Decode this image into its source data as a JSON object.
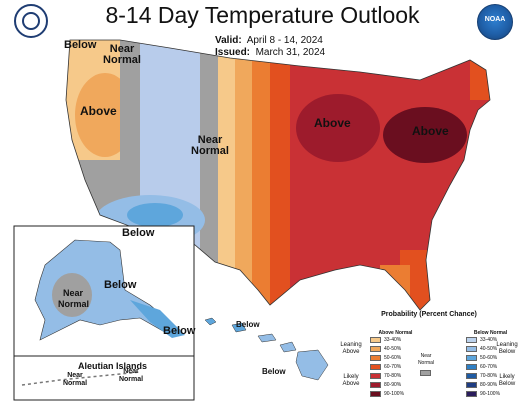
{
  "title": "8-14 Day Temperature Outlook",
  "valid_label": "Valid:",
  "valid_value": "April 8 - 14, 2024",
  "issued_label": "Issued:",
  "issued_value": "March 31, 2024",
  "logo_right_text": "NOAA",
  "labels": {
    "below_nw": "Below",
    "near_normal_nw": "Near Normal",
    "above_west": "Above",
    "near_normal_center": "Near Normal",
    "below_sw": "Below",
    "above_mw": "Above",
    "above_ne": "Above",
    "alaska_below": "Below",
    "alaska_near_normal": "Near Normal",
    "alaska_below_se": "Below",
    "aleutian_title": "Aleutian Islands",
    "aleutian_nn1": "Near Normal",
    "aleutian_nn2": "Near Normal",
    "hawaii_below1": "Below",
    "hawaii_below2": "Below"
  },
  "legend": {
    "title": "Probability (Percent Chance)",
    "above_normal": "Above Normal",
    "below_normal": "Below Normal",
    "leaning_above": "Leaning Above",
    "likely_above": "Likely Above",
    "near_normal": "Near Normal",
    "leaning_below": "Leaning Below",
    "likely_below": "Likely Below",
    "above_bins": [
      "33-40%",
      "40-50%",
      "50-60%",
      "60-70%",
      "70-80%",
      "80-90%",
      "90-100%"
    ],
    "below_bins": [
      "33-40%",
      "40-50%",
      "50-60%",
      "60-70%",
      "70-80%",
      "80-90%",
      "90-100%"
    ],
    "above_colors": [
      "#f6c98a",
      "#f0a85c",
      "#eb7d32",
      "#e2501f",
      "#c93135",
      "#9d1b2c",
      "#6a0e1f"
    ],
    "below_colors": [
      "#bcd3ee",
      "#94bde6",
      "#5ea6dc",
      "#2f7fc4",
      "#1f5ba3",
      "#1f3d83",
      "#2a1d5c"
    ],
    "near_color": "#a0a0a0"
  }
}
